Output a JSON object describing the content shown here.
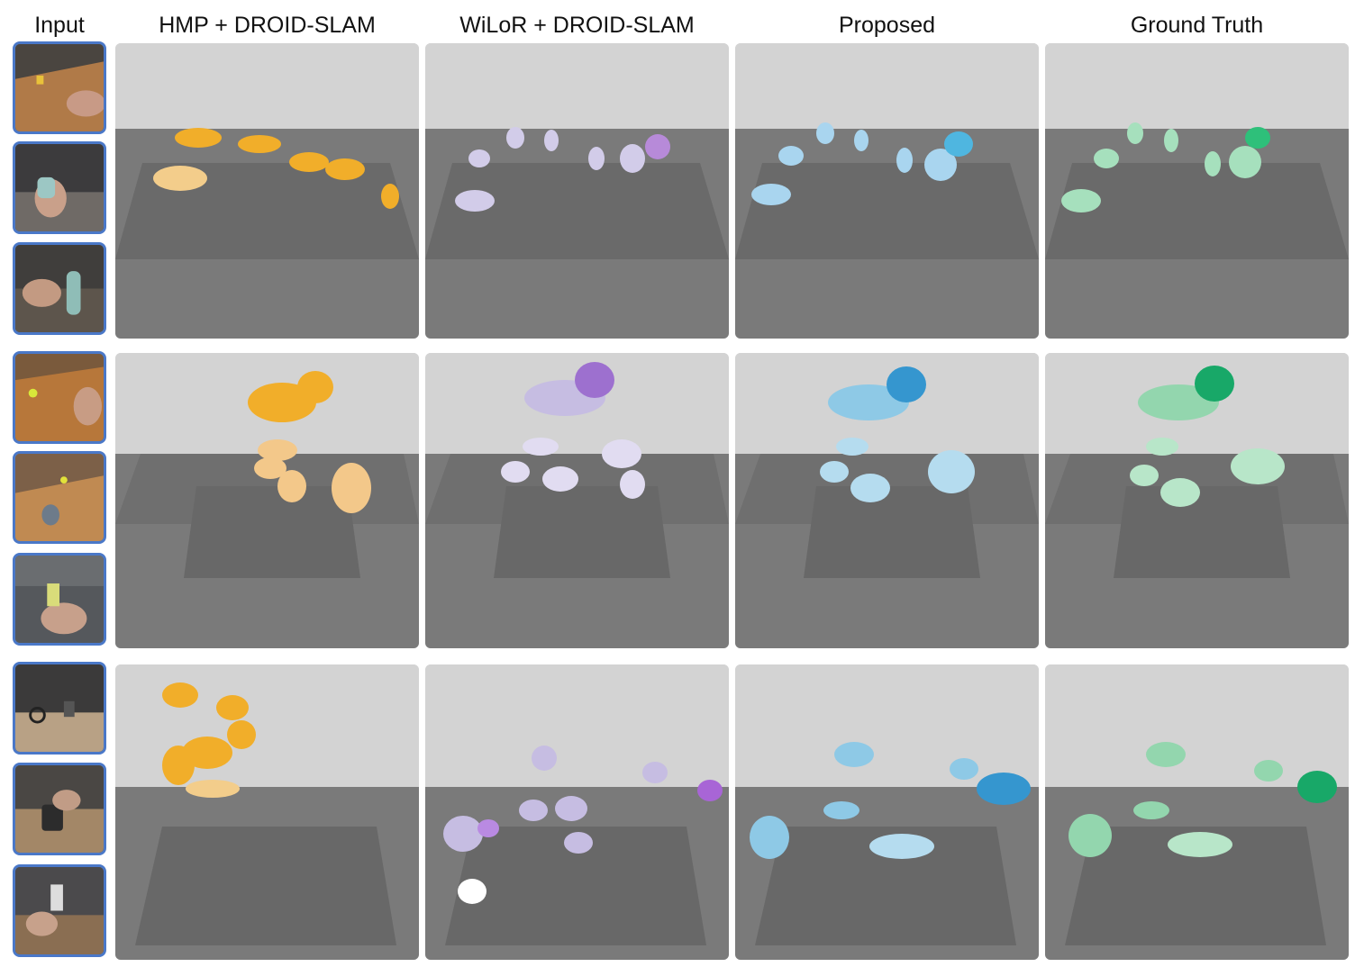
{
  "headers": {
    "input": "Input",
    "hmp": "HMP + DROID-SLAM",
    "wilor": "WiLoR + DROID-SLAM",
    "proposed": "Proposed",
    "gt": "Ground Truth"
  },
  "method_colors": {
    "hmp": "#f0a81c",
    "wilor": "#c6bfe2",
    "proposed": "#8ec9e6",
    "gt": "#98dcb4"
  },
  "accent": {
    "thumb_border": "#4a78c8"
  }
}
